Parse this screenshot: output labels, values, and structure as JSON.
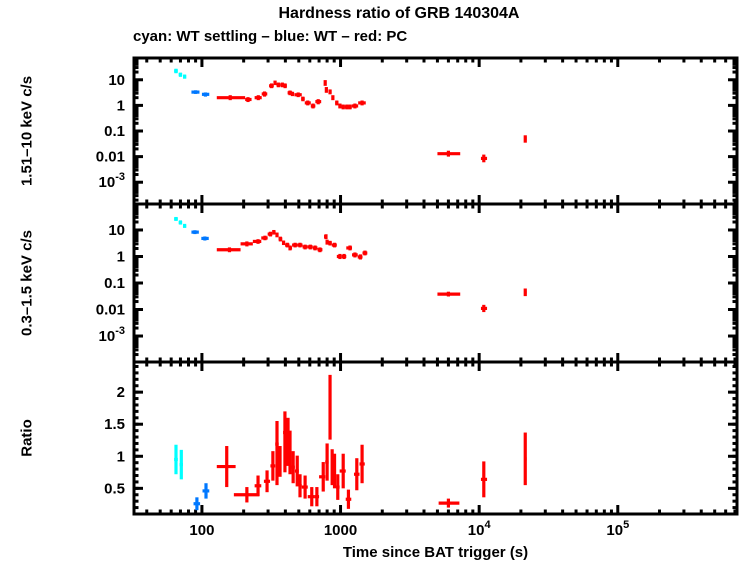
{
  "chart_data": {
    "type": "scatter",
    "title": "Hardness ratio of GRB 140304A",
    "subtitle": "cyan: WT settling – blue: WT – red: PC",
    "xlabel": "Time since BAT trigger (s)",
    "legend": [
      {
        "color_name": "cyan",
        "hex": "#00ffff",
        "mode": "WT settling"
      },
      {
        "color_name": "blue",
        "hex": "#0078ff",
        "mode": "WT"
      },
      {
        "color_name": "red",
        "hex": "#ff0000",
        "mode": "PC"
      }
    ],
    "series_colors": {
      "cyan": "#00ffff",
      "blue": "#0078ff",
      "red": "#ff0000"
    },
    "x_axis": {
      "scale": "log",
      "log10_range": [
        1.51,
        5.86
      ],
      "label": "Time since BAT trigger (s)",
      "ticks": [
        {
          "value": 100,
          "label": "100"
        },
        {
          "value": 1000,
          "label": "1000"
        },
        {
          "value": 10000,
          "label": "10^4"
        },
        {
          "value": 100000,
          "label": "10^5"
        }
      ]
    },
    "panels": [
      {
        "ylabel": "1.51–10 keV c/s",
        "scale": "log",
        "log10_range": [
          -3.85,
          1.85
        ],
        "yticks": [
          {
            "value": 10,
            "label": "10"
          },
          {
            "value": 1,
            "label": "1"
          },
          {
            "value": 0.1,
            "label": "0.1"
          },
          {
            "value": 0.01,
            "label": "0.01"
          },
          {
            "value": 0.001,
            "label": "10^-3"
          }
        ],
        "points": {
          "cyan": [
            [
              63,
              65,
              67,
              18,
              22,
              27
            ],
            [
              68,
              70,
              72,
              13,
              16,
              19
            ],
            [
              73,
              75,
              77,
              11,
              13,
              16
            ]
          ],
          "blue": [
            [
              84,
              90,
              96,
              2.8,
              3.3,
              3.9
            ],
            [
              100,
              106,
              113,
              2.2,
              2.7,
              3.2
            ]
          ],
          "red": [
            [
              128,
              160,
              205,
              1.6,
              2.0,
              2.5
            ],
            [
              205,
              215,
              228,
              1.35,
              1.7,
              2.1
            ],
            [
              240,
              255,
              270,
              1.6,
              2.0,
              2.5
            ],
            [
              270,
              283,
              296,
              2.2,
              2.8,
              3.5
            ],
            [
              305,
              318,
              330,
              4.7,
              5.8,
              7.2
            ],
            [
              330,
              337,
              345,
              6.2,
              7.6,
              9.3
            ],
            [
              345,
              356,
              367,
              5.1,
              6.3,
              7.8
            ],
            [
              367,
              380,
              392,
              5.1,
              6.3,
              7.8
            ],
            [
              392,
              398,
              410,
              4.7,
              5.8,
              7.2
            ],
            [
              415,
              432,
              448,
              2.5,
              3.1,
              3.8
            ],
            [
              438,
              450,
              462,
              2.3,
              2.8,
              3.4
            ],
            [
              465,
              495,
              525,
              2.1,
              2.6,
              3.2
            ],
            [
              520,
              535,
              552,
              1.45,
              1.8,
              2.2
            ],
            [
              552,
              580,
              610,
              1.0,
              1.25,
              1.55
            ],
            [
              610,
              633,
              658,
              0.76,
              0.95,
              1.18
            ],
            [
              658,
              690,
              725,
              1.1,
              1.4,
              1.75
            ],
            [
              760,
              775,
              790,
              5.8,
              7.5,
              9.7
            ],
            [
              775,
              790,
              805,
              3.1,
              4.0,
              5.2
            ],
            [
              820,
              840,
              862,
              2.7,
              3.4,
              4.2
            ],
            [
              862,
              880,
              900,
              1.6,
              2.0,
              2.5
            ],
            [
              915,
              940,
              965,
              1.0,
              1.25,
              1.55
            ],
            [
              965,
              990,
              1018,
              0.76,
              0.95,
              1.18
            ],
            [
              1018,
              1045,
              1075,
              0.7,
              0.87,
              1.08
            ],
            [
              1075,
              1110,
              1145,
              0.7,
              0.87,
              1.08
            ],
            [
              1145,
              1170,
              1205,
              0.7,
              0.87,
              1.08
            ],
            [
              1205,
              1270,
              1340,
              0.76,
              0.95,
              1.18
            ],
            [
              1340,
              1430,
              1520,
              1.0,
              1.25,
              1.55
            ],
            [
              5000,
              6000,
              7300,
              0.01,
              0.013,
              0.017
            ],
            [
              10300,
              10800,
              11400,
              0.006,
              0.0085,
              0.012
            ],
            [
              21100,
              21500,
              22000,
              0.035,
              0.05,
              0.068
            ]
          ]
        }
      },
      {
        "ylabel": "0.3–1.5 keV c/s",
        "scale": "log",
        "log10_range": [
          -3.98,
          1.98
        ],
        "yticks": [
          {
            "value": 10,
            "label": "10"
          },
          {
            "value": 1,
            "label": "1"
          },
          {
            "value": 0.1,
            "label": "0.1"
          },
          {
            "value": 0.01,
            "label": "0.01"
          },
          {
            "value": 0.001,
            "label": "10^-3"
          }
        ],
        "points": {
          "cyan": [
            [
              63,
              65,
              67,
              22,
              26,
              31
            ],
            [
              68,
              70,
              72,
              16,
              19,
              23
            ],
            [
              73,
              75,
              77,
              12,
              14,
              17
            ]
          ],
          "blue": [
            [
              84,
              89,
              95,
              7.0,
              8.3,
              9.8
            ],
            [
              99,
              105,
              112,
              4.0,
              4.8,
              5.7
            ]
          ],
          "red": [
            [
              128,
              158,
              190,
              1.45,
              1.8,
              2.2
            ],
            [
              190,
              211,
              233,
              2.4,
              3.0,
              3.7
            ],
            [
              233,
              254,
              268,
              3.0,
              3.7,
              4.5
            ],
            [
              268,
              285,
              298,
              4.1,
              5.0,
              6.1
            ],
            [
              298,
              312,
              322,
              5.7,
              7.0,
              8.6
            ],
            [
              322,
              330,
              340,
              6.7,
              8.2,
              10.0
            ],
            [
              340,
              348,
              357,
              5.3,
              6.5,
              8.0
            ],
            [
              357,
              368,
              380,
              3.7,
              4.6,
              5.6
            ],
            [
              380,
              388,
              398,
              2.7,
              3.3,
              4.0
            ],
            [
              398,
              413,
              428,
              2.2,
              2.7,
              3.3
            ],
            [
              428,
              432,
              447,
              1.7,
              2.1,
              2.6
            ],
            [
              447,
              470,
              490,
              2.2,
              2.7,
              3.3
            ],
            [
              490,
              510,
              532,
              2.2,
              2.7,
              3.3
            ],
            [
              532,
              555,
              580,
              1.85,
              2.3,
              2.8
            ],
            [
              580,
              605,
              630,
              1.85,
              2.3,
              2.8
            ],
            [
              630,
              655,
              682,
              1.7,
              2.1,
              2.6
            ],
            [
              682,
              710,
              740,
              1.45,
              1.8,
              2.2
            ],
            [
              760,
              785,
              805,
              4.5,
              5.6,
              6.9
            ],
            [
              790,
              800,
              815,
              2.8,
              3.5,
              4.3
            ],
            [
              815,
              840,
              865,
              2.6,
              3.2,
              3.9
            ],
            [
              865,
              905,
              940,
              2.2,
              2.7,
              3.3
            ],
            [
              940,
              990,
              1020,
              0.8,
              1.0,
              1.25
            ],
            [
              1020,
              1060,
              1100,
              0.8,
              1.0,
              1.25
            ],
            [
              1100,
              1170,
              1210,
              1.7,
              2.1,
              2.6
            ],
            [
              1210,
              1270,
              1330,
              0.92,
              1.15,
              1.42
            ],
            [
              1330,
              1390,
              1440,
              0.77,
              0.96,
              1.2
            ],
            [
              1440,
              1500,
              1560,
              1.1,
              1.35,
              1.67
            ],
            [
              5000,
              6000,
              7300,
              0.031,
              0.038,
              0.047
            ],
            [
              10300,
              10800,
              11400,
              0.008,
              0.011,
              0.015
            ],
            [
              21100,
              21500,
              22000,
              0.032,
              0.045,
              0.062
            ]
          ]
        }
      },
      {
        "ylabel": "Ratio",
        "scale": "linear",
        "range": [
          0.1,
          2.47
        ],
        "yticks": [
          {
            "value": 0.5,
            "label": "0.5"
          },
          {
            "value": 1,
            "label": "1"
          },
          {
            "value": 1.5,
            "label": "1.5"
          },
          {
            "value": 2,
            "label": "2"
          }
        ],
        "points": {
          "cyan": [
            [
              63,
              65,
              67,
              0.72,
              0.95,
              1.18
            ],
            [
              69,
              71,
              73,
              0.64,
              0.87,
              1.1
            ]
          ],
          "blue": [
            [
              87,
              92,
              97,
              0.16,
              0.26,
              0.36
            ],
            [
              101,
              107,
              113,
              0.34,
              0.46,
              0.58
            ]
          ],
          "red": [
            [
              128,
              151,
              175,
              0.52,
              0.84,
              1.16
            ],
            [
              170,
              211,
              260,
              0.28,
              0.4,
              0.52
            ],
            [
              240,
              254,
              268,
              0.38,
              0.54,
              0.7
            ],
            [
              280,
              295,
              310,
              0.44,
              0.61,
              0.78
            ],
            [
              312,
              325,
              338,
              0.62,
              0.85,
              1.08
            ],
            [
              338,
              348,
              358,
              0.55,
              1.19,
              1.55
            ],
            [
              358,
              366,
              375,
              0.68,
              0.92,
              1.16
            ],
            [
              385,
              397,
              410,
              0.75,
              1.37,
              1.7
            ],
            [
              410,
              418,
              428,
              0.85,
              1.23,
              1.6
            ],
            [
              424,
              432,
              442,
              0.72,
              1.06,
              1.4
            ],
            [
              442,
              455,
              468,
              0.58,
              0.83,
              1.08
            ],
            [
              468,
              487,
              500,
              0.53,
              0.77,
              1.01
            ],
            [
              500,
              510,
              525,
              0.36,
              0.54,
              0.72
            ],
            [
              525,
              555,
              580,
              0.34,
              0.52,
              0.7
            ],
            [
              580,
              620,
              650,
              0.22,
              0.37,
              0.52
            ],
            [
              650,
              675,
              700,
              0.22,
              0.37,
              0.52
            ],
            [
              700,
              750,
              775,
              0.45,
              0.68,
              0.91
            ],
            [
              775,
              800,
              820,
              0.62,
              0.91,
              1.2
            ],
            [
              820,
              840,
              858,
              1.26,
              1.76,
              2.27
            ],
            [
              858,
              870,
              888,
              0.55,
              0.83,
              1.11
            ],
            [
              888,
              905,
              928,
              0.5,
              0.77,
              1.04
            ],
            [
              928,
              955,
              985,
              0.32,
              0.52,
              0.72
            ],
            [
              985,
              1045,
              1090,
              0.5,
              0.77,
              1.04
            ],
            [
              1090,
              1140,
              1195,
              0.18,
              0.33,
              0.48
            ],
            [
              1250,
              1310,
              1370,
              0.47,
              0.72,
              0.97
            ],
            [
              1370,
              1430,
              1495,
              0.58,
              0.88,
              1.18
            ],
            [
              5100,
              6000,
              7200,
              0.2,
              0.27,
              0.34
            ],
            [
              10300,
              10800,
              11400,
              0.36,
              0.64,
              0.92
            ],
            [
              21100,
              21500,
              22000,
              0.55,
              0.96,
              1.37
            ]
          ]
        }
      }
    ]
  }
}
